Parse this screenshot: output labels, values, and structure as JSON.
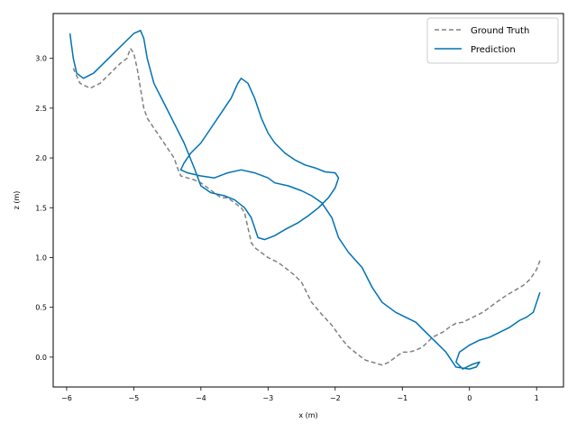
{
  "chart_data": {
    "type": "line",
    "title": "",
    "xlabel": "x (m)",
    "ylabel": "z (m)",
    "xlim": [
      -6.2,
      1.4
    ],
    "ylim": [
      -0.3,
      3.45
    ],
    "x_ticks": [
      -6,
      -5,
      -4,
      -3,
      -2,
      -1,
      0,
      1
    ],
    "y_ticks": [
      0.0,
      0.5,
      1.0,
      1.5,
      2.0,
      2.5,
      3.0
    ],
    "x_tick_labels": [
      "−6",
      "−5",
      "−4",
      "−3",
      "−2",
      "−1",
      "0",
      "1"
    ],
    "y_tick_labels": [
      "0.0",
      "0.5",
      "1.0",
      "1.5",
      "2.0",
      "2.5",
      "3.0"
    ],
    "grid": false,
    "legend_position": "top-right",
    "legend": [
      "Ground Truth",
      "Prediction"
    ],
    "series": [
      {
        "name": "Ground Truth",
        "color": "#808080",
        "dash": "dashed",
        "points": [
          [
            1.05,
            0.97
          ],
          [
            1.0,
            0.88
          ],
          [
            0.9,
            0.78
          ],
          [
            0.8,
            0.72
          ],
          [
            0.7,
            0.68
          ],
          [
            0.55,
            0.62
          ],
          [
            0.4,
            0.55
          ],
          [
            0.3,
            0.5
          ],
          [
            0.2,
            0.45
          ],
          [
            0.05,
            0.4
          ],
          [
            -0.1,
            0.35
          ],
          [
            -0.2,
            0.34
          ],
          [
            -0.3,
            0.3
          ],
          [
            -0.4,
            0.25
          ],
          [
            -0.55,
            0.2
          ],
          [
            -0.7,
            0.1
          ],
          [
            -0.8,
            0.07
          ],
          [
            -0.9,
            0.05
          ],
          [
            -1.0,
            0.05
          ],
          [
            -1.1,
            0.0
          ],
          [
            -1.2,
            -0.05
          ],
          [
            -1.3,
            -0.08
          ],
          [
            -1.45,
            -0.05
          ],
          [
            -1.55,
            -0.03
          ],
          [
            -1.65,
            0.02
          ],
          [
            -1.8,
            0.1
          ],
          [
            -1.9,
            0.18
          ],
          [
            -2.05,
            0.32
          ],
          [
            -2.2,
            0.43
          ],
          [
            -2.35,
            0.55
          ],
          [
            -2.5,
            0.75
          ],
          [
            -2.6,
            0.82
          ],
          [
            -2.75,
            0.9
          ],
          [
            -2.85,
            0.95
          ],
          [
            -3.0,
            1.0
          ],
          [
            -3.1,
            1.05
          ],
          [
            -3.2,
            1.1
          ],
          [
            -3.25,
            1.15
          ],
          [
            -3.3,
            1.3
          ],
          [
            -3.35,
            1.45
          ],
          [
            -3.4,
            1.5
          ],
          [
            -3.5,
            1.55
          ],
          [
            -3.6,
            1.6
          ],
          [
            -3.7,
            1.6
          ],
          [
            -3.8,
            1.65
          ],
          [
            -3.9,
            1.7
          ],
          [
            -4.0,
            1.75
          ],
          [
            -4.1,
            1.78
          ],
          [
            -4.2,
            1.8
          ],
          [
            -4.3,
            1.82
          ],
          [
            -4.35,
            1.9
          ],
          [
            -4.4,
            2.0
          ],
          [
            -4.5,
            2.1
          ],
          [
            -4.6,
            2.2
          ],
          [
            -4.7,
            2.3
          ],
          [
            -4.8,
            2.4
          ],
          [
            -4.85,
            2.5
          ],
          [
            -4.9,
            2.7
          ],
          [
            -4.95,
            2.9
          ],
          [
            -5.0,
            3.05
          ],
          [
            -5.05,
            3.1
          ],
          [
            -5.1,
            3.0
          ],
          [
            -5.2,
            2.95
          ],
          [
            -5.35,
            2.85
          ],
          [
            -5.5,
            2.75
          ],
          [
            -5.65,
            2.7
          ],
          [
            -5.8,
            2.75
          ],
          [
            -5.9,
            2.9
          ]
        ]
      },
      {
        "name": "Prediction",
        "color": "#0072b2",
        "dash": "solid",
        "points": [
          [
            1.05,
            0.65
          ],
          [
            1.0,
            0.55
          ],
          [
            0.95,
            0.45
          ],
          [
            0.85,
            0.4
          ],
          [
            0.75,
            0.37
          ],
          [
            0.6,
            0.3
          ],
          [
            0.45,
            0.25
          ],
          [
            0.3,
            0.2
          ],
          [
            0.15,
            0.17
          ],
          [
            0.0,
            0.12
          ],
          [
            -0.15,
            0.05
          ],
          [
            -0.2,
            -0.05
          ],
          [
            -0.1,
            -0.12
          ],
          [
            0.05,
            -0.07
          ],
          [
            0.15,
            -0.05
          ],
          [
            0.1,
            -0.1
          ],
          [
            0.0,
            -0.12
          ],
          [
            -0.2,
            -0.1
          ],
          [
            -0.35,
            0.05
          ],
          [
            -0.5,
            0.15
          ],
          [
            -0.65,
            0.25
          ],
          [
            -0.8,
            0.35
          ],
          [
            -0.95,
            0.4
          ],
          [
            -1.1,
            0.45
          ],
          [
            -1.3,
            0.55
          ],
          [
            -1.45,
            0.7
          ],
          [
            -1.6,
            0.9
          ],
          [
            -1.8,
            1.05
          ],
          [
            -1.95,
            1.2
          ],
          [
            -2.05,
            1.4
          ],
          [
            -2.2,
            1.55
          ],
          [
            -2.35,
            1.62
          ],
          [
            -2.5,
            1.67
          ],
          [
            -2.7,
            1.72
          ],
          [
            -2.9,
            1.75
          ],
          [
            -3.0,
            1.8
          ],
          [
            -3.2,
            1.85
          ],
          [
            -3.4,
            1.88
          ],
          [
            -3.6,
            1.85
          ],
          [
            -3.8,
            1.8
          ],
          [
            -4.0,
            1.82
          ],
          [
            -4.2,
            1.85
          ],
          [
            -4.3,
            1.88
          ],
          [
            -4.25,
            1.95
          ],
          [
            -4.15,
            2.05
          ],
          [
            -4.0,
            2.15
          ],
          [
            -3.9,
            2.25
          ],
          [
            -3.7,
            2.45
          ],
          [
            -3.55,
            2.6
          ],
          [
            -3.45,
            2.75
          ],
          [
            -3.4,
            2.8
          ],
          [
            -3.3,
            2.75
          ],
          [
            -3.2,
            2.6
          ],
          [
            -3.1,
            2.4
          ],
          [
            -3.0,
            2.25
          ],
          [
            -2.9,
            2.15
          ],
          [
            -2.75,
            2.05
          ],
          [
            -2.6,
            1.98
          ],
          [
            -2.45,
            1.93
          ],
          [
            -2.3,
            1.9
          ],
          [
            -2.15,
            1.86
          ],
          [
            -2.0,
            1.85
          ],
          [
            -1.95,
            1.8
          ],
          [
            -2.0,
            1.7
          ],
          [
            -2.1,
            1.6
          ],
          [
            -2.25,
            1.5
          ],
          [
            -2.4,
            1.42
          ],
          [
            -2.55,
            1.35
          ],
          [
            -2.75,
            1.28
          ],
          [
            -2.9,
            1.22
          ],
          [
            -3.05,
            1.18
          ],
          [
            -3.15,
            1.2
          ],
          [
            -3.2,
            1.3
          ],
          [
            -3.25,
            1.4
          ],
          [
            -3.35,
            1.5
          ],
          [
            -3.5,
            1.58
          ],
          [
            -3.65,
            1.62
          ],
          [
            -3.85,
            1.65
          ],
          [
            -4.0,
            1.72
          ],
          [
            -4.1,
            1.9
          ],
          [
            -4.25,
            2.15
          ],
          [
            -4.4,
            2.35
          ],
          [
            -4.55,
            2.55
          ],
          [
            -4.7,
            2.75
          ],
          [
            -4.8,
            3.0
          ],
          [
            -4.85,
            3.2
          ],
          [
            -4.9,
            3.28
          ],
          [
            -5.0,
            3.25
          ],
          [
            -5.15,
            3.15
          ],
          [
            -5.3,
            3.05
          ],
          [
            -5.45,
            2.95
          ],
          [
            -5.6,
            2.85
          ],
          [
            -5.75,
            2.8
          ],
          [
            -5.85,
            2.85
          ],
          [
            -5.9,
            3.0
          ],
          [
            -5.95,
            3.25
          ]
        ]
      }
    ]
  }
}
